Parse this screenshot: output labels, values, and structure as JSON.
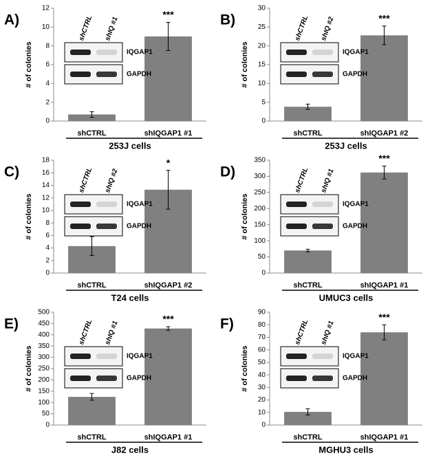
{
  "chart_data": [
    {
      "type": "bar",
      "panel": "A)",
      "ylabel": "# of colonies",
      "xlabel": "253J  cells",
      "categories": [
        "shCTRL",
        "shIQGAP1 #1"
      ],
      "values": [
        0.7,
        9.0
      ],
      "errors": [
        0.3,
        1.5
      ],
      "annotation": "***",
      "color": "#808080",
      "ylim": [
        0,
        12
      ],
      "yticks": [
        0,
        2,
        4,
        6,
        8,
        10,
        12
      ],
      "lane_labels": [
        "shCTRL",
        "shIQ #1"
      ],
      "blot_labels": [
        "IQGAP1",
        "GAPDH"
      ]
    },
    {
      "type": "bar",
      "panel": "B)",
      "ylabel": "# of colonies",
      "xlabel": "253J  cells",
      "categories": [
        "shCTRL",
        "shIQGAP1 #2"
      ],
      "values": [
        3.8,
        22.8
      ],
      "errors": [
        0.7,
        2.5
      ],
      "annotation": "***",
      "color": "#808080",
      "ylim": [
        0,
        30
      ],
      "yticks": [
        0,
        5,
        10,
        15,
        20,
        25,
        30
      ],
      "lane_labels": [
        "shCTRL",
        "shIQ #2"
      ],
      "blot_labels": [
        "IQGAP1",
        "GAPDH"
      ]
    },
    {
      "type": "bar",
      "panel": "C)",
      "ylabel": "# of colonies",
      "xlabel": "T24  cells",
      "categories": [
        "shCTRL",
        "shIQGAP1 #2"
      ],
      "values": [
        4.3,
        13.3
      ],
      "errors": [
        1.5,
        3.1
      ],
      "annotation": "*",
      "color": "#808080",
      "ylim": [
        0,
        18
      ],
      "yticks": [
        0,
        2,
        4,
        6,
        8,
        10,
        12,
        14,
        16,
        18
      ],
      "lane_labels": [
        "shCTRL",
        "shIQ #2"
      ],
      "blot_labels": [
        "IQGAP1",
        "GAPDH"
      ]
    },
    {
      "type": "bar",
      "panel": "D)",
      "ylabel": "# of colonies",
      "xlabel": "UMUC3  cells",
      "categories": [
        "shCTRL",
        "shIQGAP1 #1"
      ],
      "values": [
        70,
        312
      ],
      "errors": [
        4,
        20
      ],
      "annotation": "***",
      "color": "#808080",
      "ylim": [
        0,
        350
      ],
      "yticks": [
        0,
        50,
        100,
        150,
        200,
        250,
        300,
        350
      ],
      "lane_labels": [
        "shCTRL",
        "shIQ #1"
      ],
      "blot_labels": [
        "IQGAP1",
        "GAPDH"
      ]
    },
    {
      "type": "bar",
      "panel": "E)",
      "ylabel": "# of colonies",
      "xlabel": "J82  cells",
      "categories": [
        "shCTRL",
        "shIQGAP1 #1"
      ],
      "values": [
        125,
        428
      ],
      "errors": [
        15,
        8
      ],
      "annotation": "***",
      "color": "#808080",
      "ylim": [
        0,
        500
      ],
      "yticks": [
        0,
        50,
        100,
        150,
        200,
        250,
        300,
        350,
        400,
        450,
        500
      ],
      "lane_labels": [
        "shCTRL",
        "shIQ #1"
      ],
      "blot_labels": [
        "IQGAP1",
        "GAPDH"
      ]
    },
    {
      "type": "bar",
      "panel": "F)",
      "ylabel": "# of colonies",
      "xlabel": "MGHU3 cells",
      "categories": [
        "shCTRL",
        "shIQGAP1 #1"
      ],
      "values": [
        10.5,
        74
      ],
      "errors": [
        2.5,
        6
      ],
      "annotation": "***",
      "color": "#808080",
      "ylim": [
        0,
        90
      ],
      "yticks": [
        0,
        10,
        20,
        30,
        40,
        50,
        60,
        70,
        80,
        90
      ],
      "lane_labels": [
        "shCTRL",
        "shIQ #1"
      ],
      "blot_labels": [
        "IQGAP1",
        "GAPDH"
      ]
    }
  ]
}
